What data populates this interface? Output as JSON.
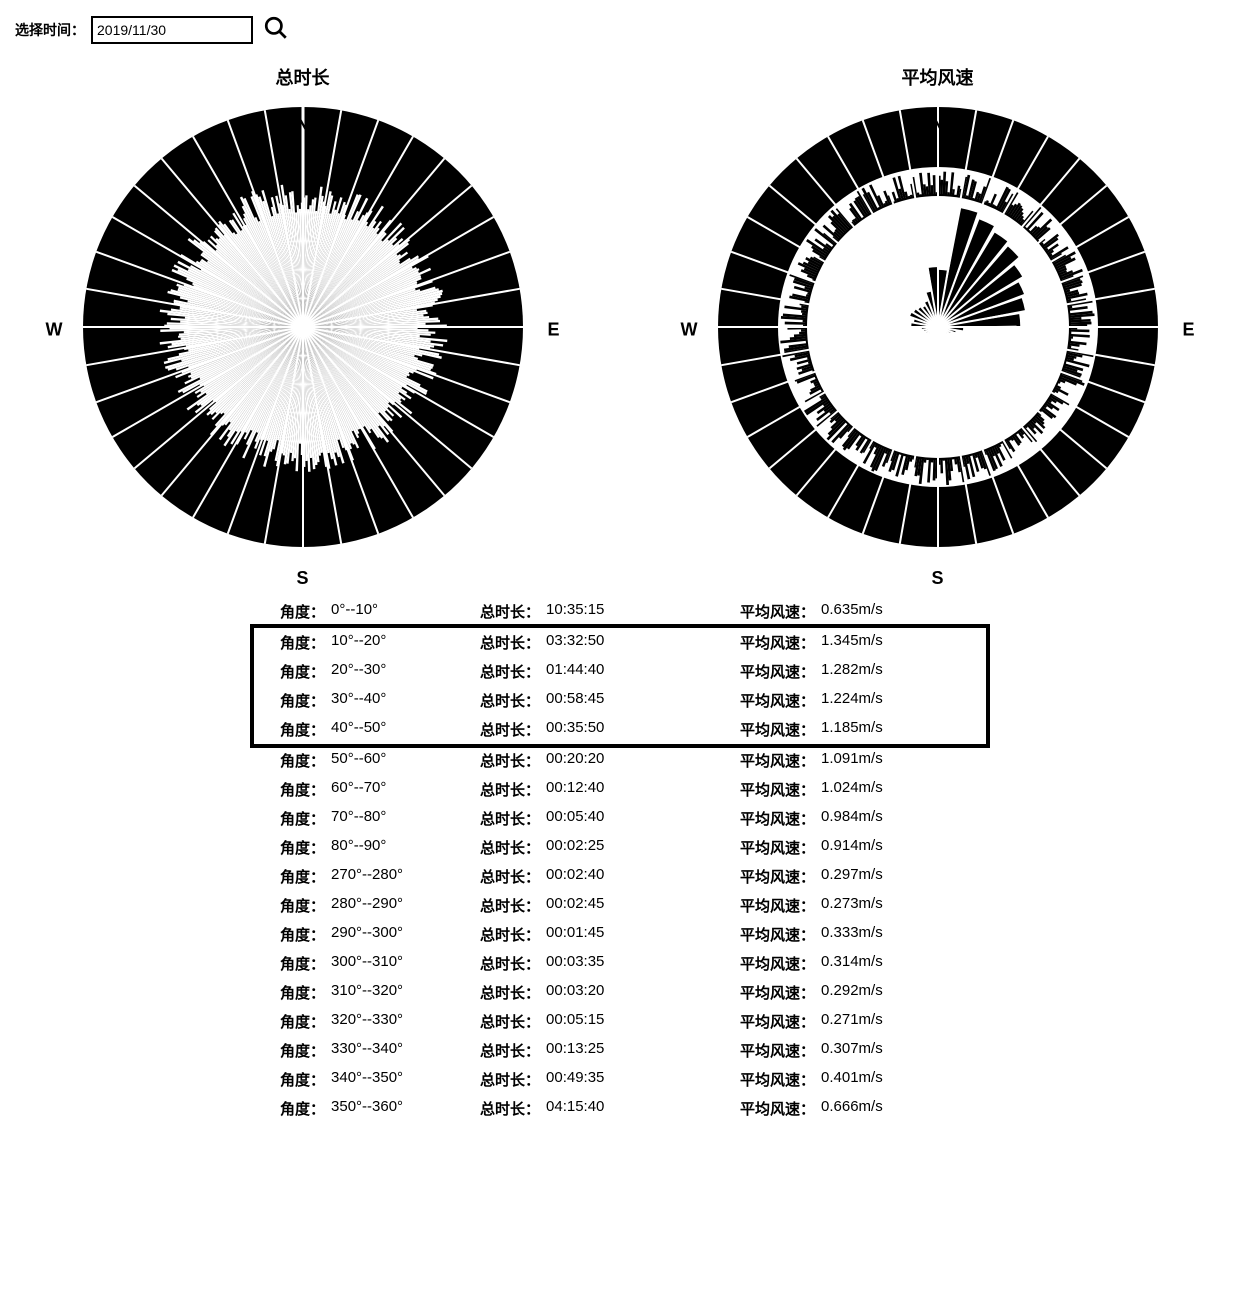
{
  "toolbar": {
    "label": "选择时间：",
    "date_value": "2019/11/30"
  },
  "chart_left": {
    "title": "总时长",
    "type": "polar-bar",
    "n_sectors": 36,
    "outer_radius": 1.0,
    "background_color": "#000000",
    "bar_color": "#000000",
    "inner_fill": "#ffffff",
    "spoke_color": "#ffffff",
    "spoke_count": 36,
    "directions": {
      "n": "N",
      "e": "E",
      "s": "S",
      "w": "W"
    },
    "inner_ragged_radius_min": 0.52,
    "inner_ragged_radius_max": 0.66,
    "south_spike_angle": 180,
    "south_spike_inner": 0.02
  },
  "chart_right": {
    "title": "平均风速",
    "type": "polar-bar",
    "n_sectors": 36,
    "outer_radius": 1.0,
    "background_color": "#000000",
    "bar_color": "#000000",
    "inner_fill": "#ffffff",
    "spoke_color": "#ffffff",
    "spoke_count": 36,
    "directions": {
      "n": "N",
      "e": "E",
      "s": "S",
      "w": "W"
    },
    "ring_inner_radius": 0.6,
    "ring_outer_radius": 0.7,
    "ring_ragged_min": 0.6,
    "ring_ragged_max": 0.72,
    "center_values_scale": 0.55,
    "center_values": [
      0.635,
      1.345,
      1.282,
      1.224,
      1.185,
      1.091,
      1.024,
      0.984,
      0.914,
      0.28,
      0.2,
      0.15,
      0.12,
      0.1,
      0.08,
      0.08,
      0.07,
      0.07,
      0.07,
      0.08,
      0.08,
      0.09,
      0.1,
      0.12,
      0.14,
      0.16,
      0.18,
      0.297,
      0.273,
      0.333,
      0.314,
      0.292,
      0.271,
      0.307,
      0.401,
      0.666
    ]
  },
  "table": {
    "angle_label": "角度：",
    "duration_label": "总时长：",
    "speed_label": "平均风速：",
    "speed_unit": "m/s",
    "highlight_start": 1,
    "highlight_end": 4,
    "rows": [
      {
        "angle": "0°--10°",
        "duration": "10:35:15",
        "speed": "0.635"
      },
      {
        "angle": "10°--20°",
        "duration": "03:32:50",
        "speed": "1.345"
      },
      {
        "angle": "20°--30°",
        "duration": "01:44:40",
        "speed": "1.282"
      },
      {
        "angle": "30°--40°",
        "duration": "00:58:45",
        "speed": "1.224"
      },
      {
        "angle": "40°--50°",
        "duration": "00:35:50",
        "speed": "1.185"
      },
      {
        "angle": "50°--60°",
        "duration": "00:20:20",
        "speed": "1.091"
      },
      {
        "angle": "60°--70°",
        "duration": "00:12:40",
        "speed": "1.024"
      },
      {
        "angle": "70°--80°",
        "duration": "00:05:40",
        "speed": "0.984"
      },
      {
        "angle": "80°--90°",
        "duration": "00:02:25",
        "speed": "0.914"
      },
      {
        "angle": "270°--280°",
        "duration": "00:02:40",
        "speed": "0.297"
      },
      {
        "angle": "280°--290°",
        "duration": "00:02:45",
        "speed": "0.273"
      },
      {
        "angle": "290°--300°",
        "duration": "00:01:45",
        "speed": "0.333"
      },
      {
        "angle": "300°--310°",
        "duration": "00:03:35",
        "speed": "0.314"
      },
      {
        "angle": "310°--320°",
        "duration": "00:03:20",
        "speed": "0.292"
      },
      {
        "angle": "320°--330°",
        "duration": "00:05:15",
        "speed": "0.271"
      },
      {
        "angle": "330°--340°",
        "duration": "00:13:25",
        "speed": "0.307"
      },
      {
        "angle": "340°--350°",
        "duration": "00:49:35",
        "speed": "0.401"
      },
      {
        "angle": "350°--360°",
        "duration": "04:15:40",
        "speed": "0.666"
      }
    ]
  },
  "colors": {
    "text": "#000000",
    "background": "#ffffff",
    "chart_fill": "#000000"
  }
}
